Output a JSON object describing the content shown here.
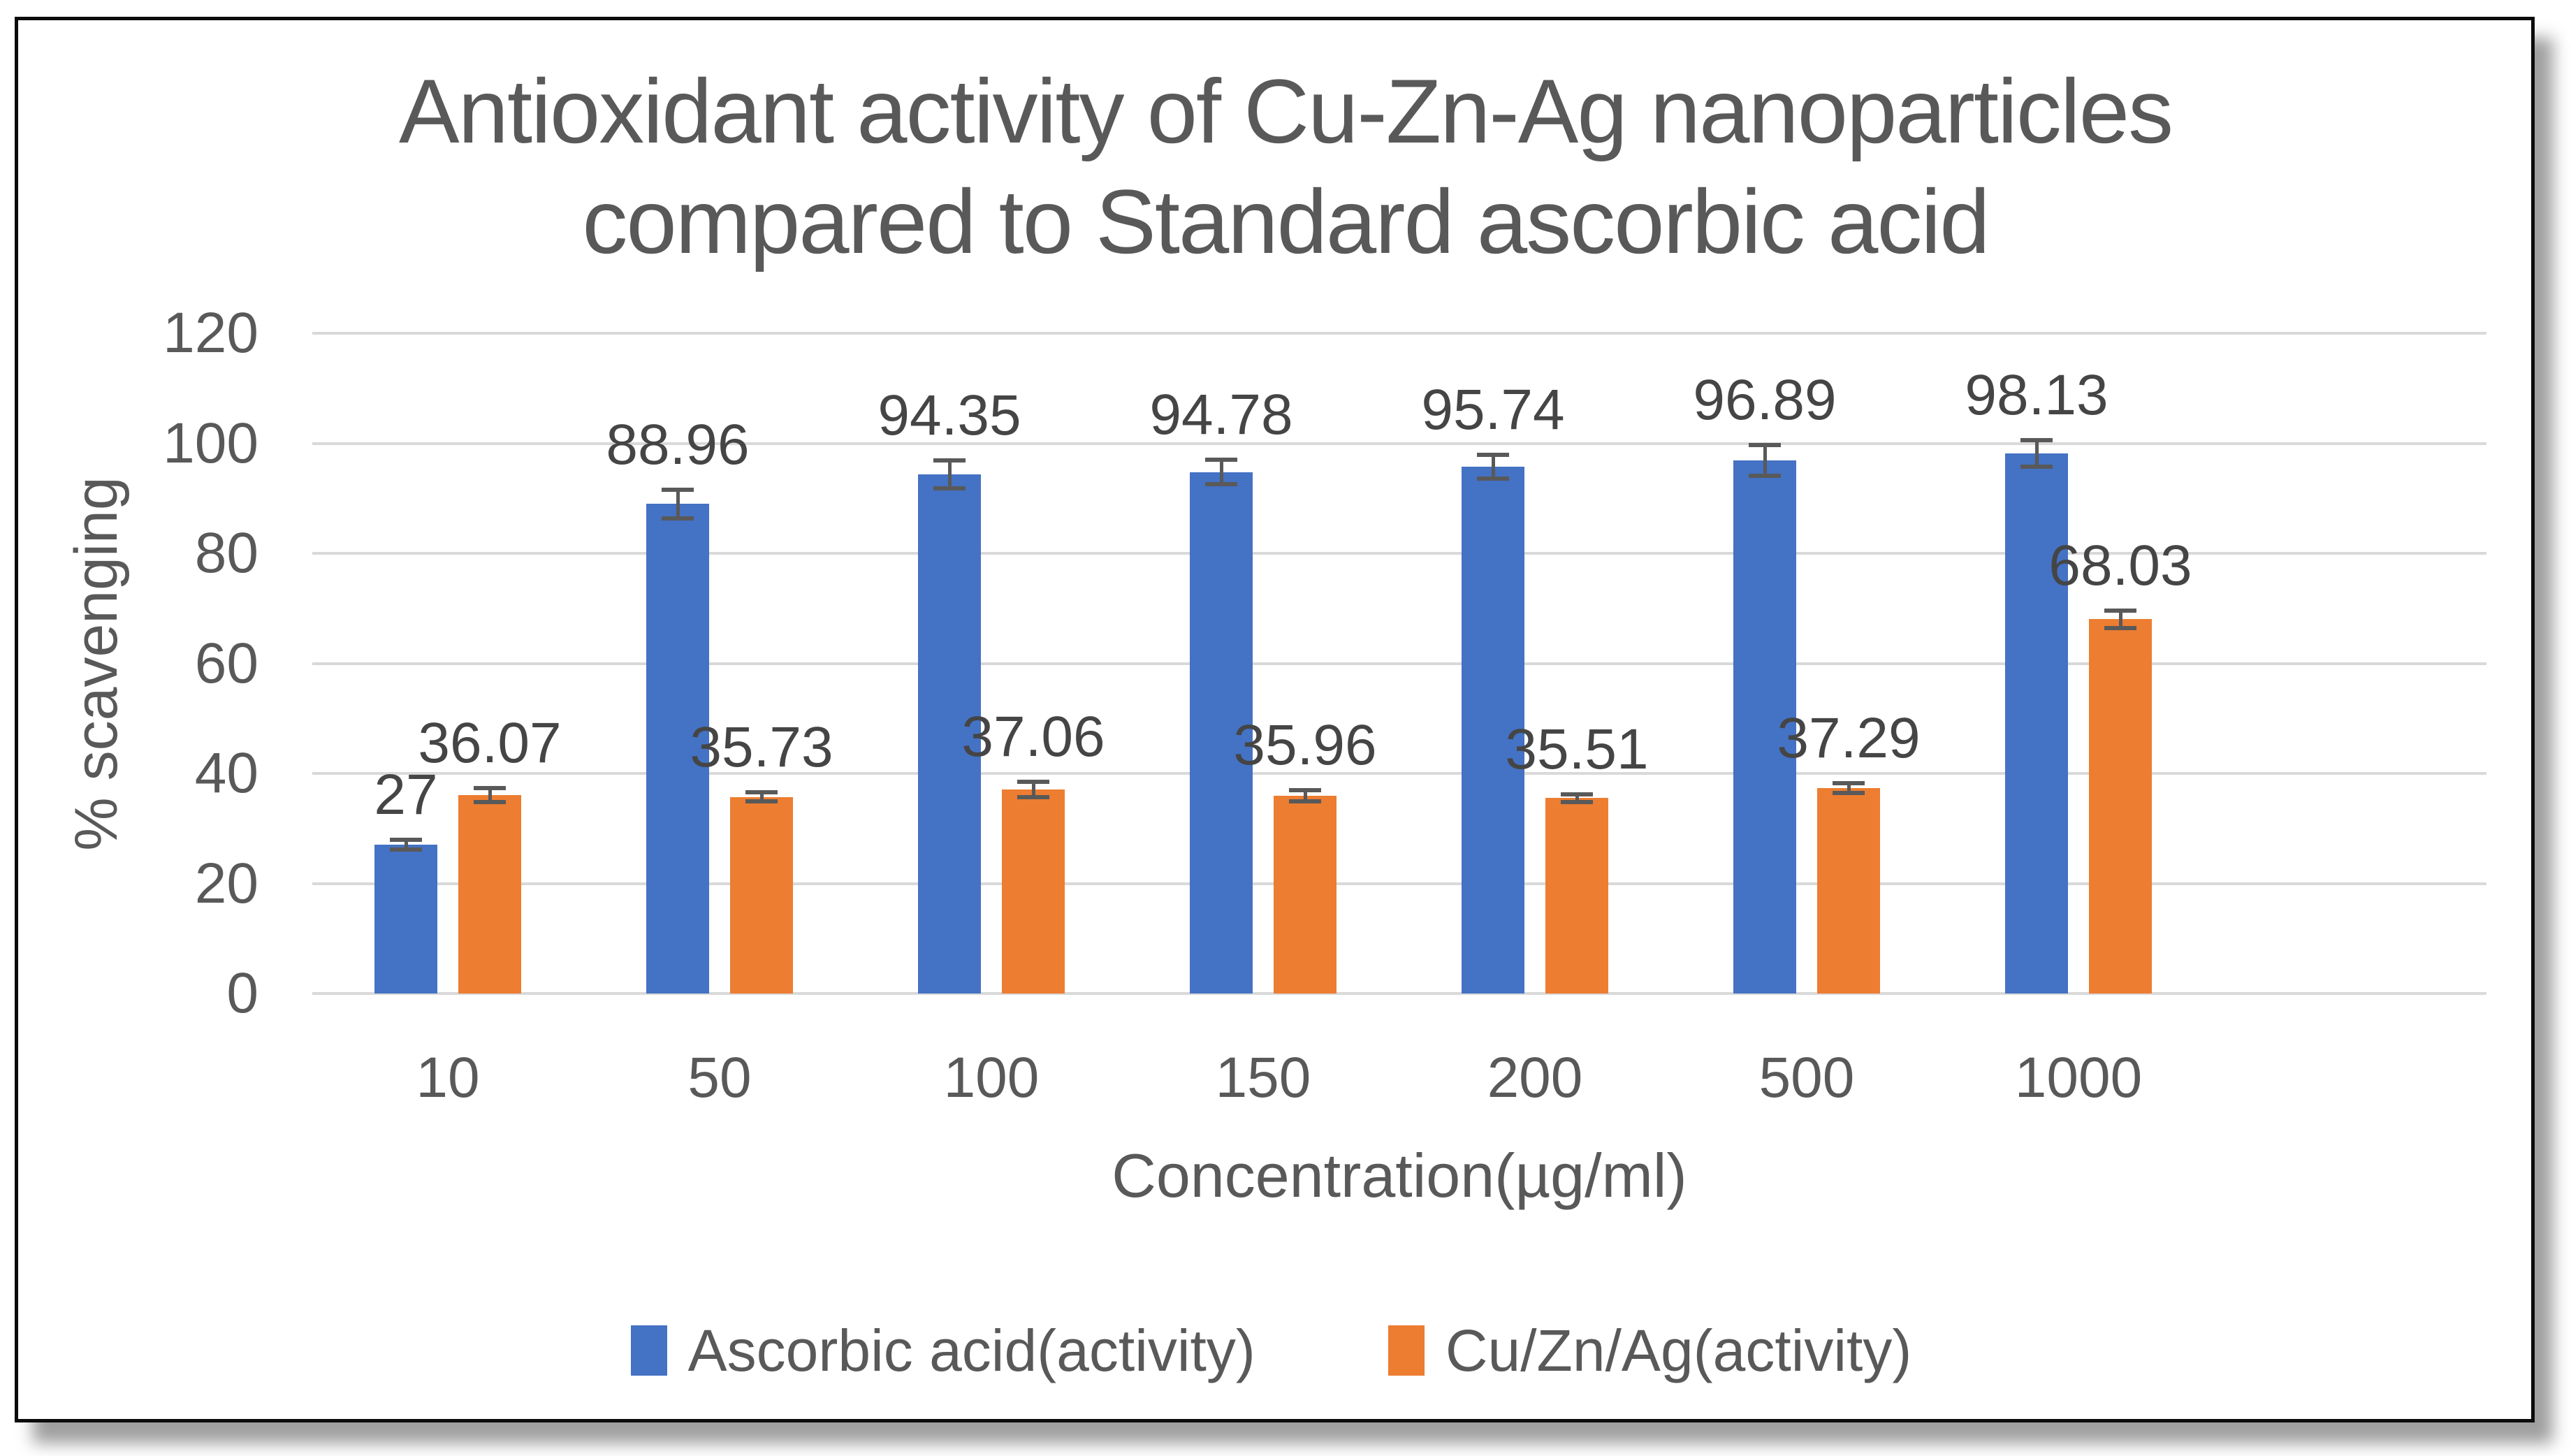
{
  "chart_data": {
    "type": "bar",
    "title": "Antioxidant activity of Cu-Zn-Ag nanoparticles compared to Standard ascorbic acid",
    "title_lines": [
      "Antioxidant activity of Cu-Zn-Ag nanoparticles",
      "compared to Standard ascorbic acid"
    ],
    "xlabel": "Concentration(µg/ml)",
    "ylabel": "% scavenging",
    "categories": [
      "10",
      "50",
      "100",
      "150",
      "200",
      "500",
      "1000"
    ],
    "series": [
      {
        "name": "Ascorbic acid(activity)",
        "color": "#4472C4",
        "values": [
          27,
          88.96,
          94.35,
          94.78,
          95.74,
          96.89,
          98.13
        ],
        "errors": [
          0.9,
          2.6,
          2.6,
          2.2,
          2.2,
          2.8,
          2.4
        ]
      },
      {
        "name": "Cu/Zn/Ag(activity)",
        "color": "#ED7D31",
        "values": [
          36.07,
          35.73,
          37.06,
          35.96,
          35.51,
          37.29,
          68.03
        ],
        "errors": [
          1.3,
          0.8,
          1.4,
          1.0,
          0.7,
          0.9,
          1.6
        ]
      }
    ],
    "yticks": [
      0,
      20,
      40,
      60,
      80,
      100,
      120
    ],
    "ylim": [
      0,
      120
    ],
    "grid": true,
    "has_error_bars": true,
    "legend_position": "bottom",
    "colors": {
      "grid": "#d9d9d9",
      "axis_text": "#595959",
      "data_label": "#454545",
      "error_bar": "#595959",
      "frame_border": "#0b0b0b",
      "background": "#ffffff"
    }
  }
}
